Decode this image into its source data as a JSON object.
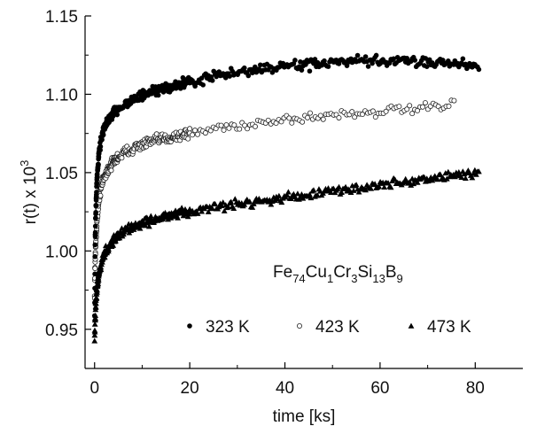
{
  "chart_data": {
    "type": "scatter",
    "xlabel": "time [ks]",
    "ylabel_base": "r(t) x 10",
    "ylabel_sup": "3",
    "xlim": [
      -2,
      90
    ],
    "ylim": [
      0.925,
      1.15
    ],
    "xticks": [
      0,
      20,
      40,
      60,
      80
    ],
    "xtick_labels": [
      "0",
      "20",
      "40",
      "60",
      "80"
    ],
    "yticks": [
      0.95,
      1.0,
      1.05,
      1.1,
      1.15
    ],
    "ytick_labels": [
      "0.95",
      "1.00",
      "1.05",
      "1.10",
      "1.15"
    ],
    "grid": false,
    "legend_position": "bottom-right",
    "annotation": {
      "parts": [
        {
          "text": "Fe",
          "sub": false
        },
        {
          "text": "74",
          "sub": true
        },
        {
          "text": "Cu",
          "sub": false
        },
        {
          "text": "1",
          "sub": true
        },
        {
          "text": "Cr",
          "sub": false
        },
        {
          "text": "3",
          "sub": true
        },
        {
          "text": "Si",
          "sub": false
        },
        {
          "text": "13",
          "sub": true
        },
        {
          "text": "B",
          "sub": false
        },
        {
          "text": "9",
          "sub": true
        }
      ]
    },
    "series": [
      {
        "name": "323 K",
        "marker": "filled-circle",
        "t": [
          0,
          0.1,
          0.2,
          0.3,
          0.5,
          0.8,
          1,
          1.5,
          2,
          3,
          4,
          5,
          7,
          10,
          15,
          20,
          25,
          30,
          35,
          40,
          45,
          50,
          55,
          60,
          65,
          70,
          75,
          80,
          81
        ],
        "r": [
          0.958,
          1.005,
          1.02,
          1.03,
          1.045,
          1.058,
          1.065,
          1.073,
          1.078,
          1.084,
          1.088,
          1.091,
          1.095,
          1.099,
          1.104,
          1.108,
          1.111,
          1.114,
          1.116,
          1.118,
          1.119,
          1.12,
          1.121,
          1.121,
          1.121,
          1.121,
          1.12,
          1.118,
          1.116
        ],
        "spread": 0.0025
      },
      {
        "name": "423 K",
        "marker": "open-circle",
        "t": [
          0,
          0.1,
          0.2,
          0.3,
          0.5,
          0.8,
          1,
          1.5,
          2,
          3,
          4,
          5,
          7,
          10,
          15,
          20,
          25,
          30,
          35,
          40,
          45,
          50,
          55,
          60,
          65,
          70,
          75,
          76
        ],
        "r": [
          0.97,
          0.992,
          1.0,
          1.008,
          1.02,
          1.03,
          1.035,
          1.042,
          1.047,
          1.053,
          1.057,
          1.06,
          1.064,
          1.068,
          1.072,
          1.075,
          1.078,
          1.08,
          1.082,
          1.084,
          1.085,
          1.087,
          1.088,
          1.089,
          1.09,
          1.091,
          1.092,
          1.092
        ],
        "spread": 0.0025
      },
      {
        "name": "473 K",
        "marker": "filled-triangle",
        "t": [
          0,
          0.1,
          0.2,
          0.3,
          0.5,
          0.8,
          1,
          1.5,
          2,
          3,
          4,
          5,
          7,
          10,
          15,
          20,
          25,
          30,
          35,
          40,
          45,
          50,
          55,
          60,
          65,
          70,
          75,
          80,
          81
        ],
        "r": [
          0.945,
          0.955,
          0.962,
          0.968,
          0.975,
          0.983,
          0.987,
          0.993,
          0.998,
          1.003,
          1.007,
          1.01,
          1.014,
          1.018,
          1.022,
          1.025,
          1.028,
          1.03,
          1.032,
          1.034,
          1.036,
          1.038,
          1.04,
          1.042,
          1.044,
          1.046,
          1.048,
          1.05,
          1.05
        ],
        "spread": 0.0022
      }
    ]
  }
}
